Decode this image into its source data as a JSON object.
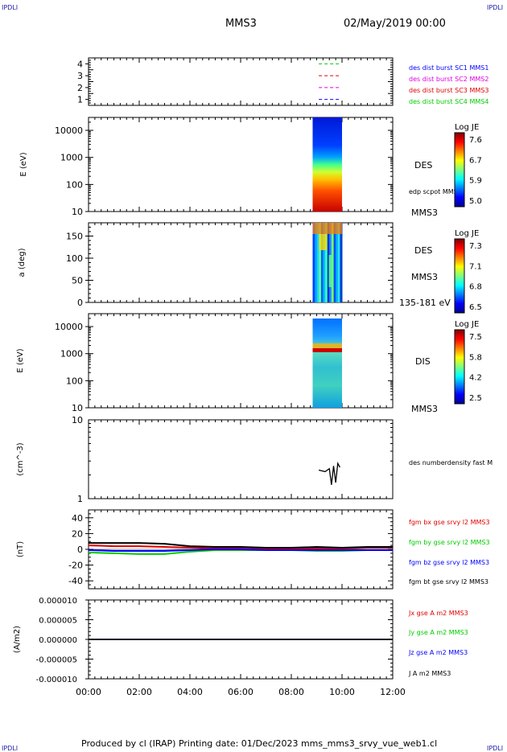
{
  "header": {
    "corner_left": "IPDLI",
    "corner_right": "IPDLI",
    "spacecraft": "MMS3",
    "date": "02/May/2019 00:00"
  },
  "footer": {
    "text": "Produced by cl (IRAP)   Printing date: 01/Dec/2023   mms_mms3_srvy_vue_web1.cl",
    "corner_left": "IPDLI",
    "corner_right": "IPDLI"
  },
  "colors": {
    "mms1": "#0000ff",
    "mms2": "#e000e0",
    "mms3": "#e00000",
    "mms4": "#00cc00",
    "bx": "#e00000",
    "by": "#00cc00",
    "bz": "#0000ff",
    "bt": "#000000"
  },
  "chart_data": [
    {
      "type": "scatter",
      "panel": "burst coverage",
      "xlabel": "",
      "ylabel": "",
      "xlim": [
        "00:00",
        "12:00"
      ],
      "ylim": [
        0.5,
        4.5
      ],
      "yticks": [
        "1",
        "2",
        "3",
        "4"
      ],
      "series": [
        {
          "name": "des dist burst SC1 MMS1",
          "y": 1,
          "x": [
            "09:05",
            "09:55"
          ],
          "color": "#0000ff"
        },
        {
          "name": "des dist burst SC2 MMS2",
          "y": 2,
          "x": [
            "09:05",
            "09:55"
          ],
          "color": "#e000e0"
        },
        {
          "name": "des dist burst SC3 MMS3",
          "y": 3,
          "x": [
            "09:05",
            "09:55"
          ],
          "color": "#e00000"
        },
        {
          "name": "des dist burst SC4 MMS4",
          "y": 4,
          "x": [
            "09:05",
            "09:55"
          ],
          "color": "#00cc00"
        }
      ]
    },
    {
      "type": "heatmap",
      "panel": "DES energy spectrogram",
      "ylabel": "E (eV)",
      "yscale": "log",
      "ylim": [
        10,
        30000
      ],
      "yticks": [
        "10",
        "100",
        "1000",
        "10000"
      ],
      "labels": [
        "DES",
        "edp scpot MMS3",
        "MMS3"
      ],
      "colorbar": {
        "title": "Log JE",
        "ticks": [
          "7.6",
          "6.7",
          "5.9",
          "5.0"
        ]
      },
      "data_interval": [
        "09:00",
        "10:00"
      ]
    },
    {
      "type": "heatmap",
      "panel": "DES pitch angle",
      "ylabel": "a (deg)",
      "ylim": [
        0,
        180
      ],
      "yticks": [
        "0",
        "50",
        "100",
        "150"
      ],
      "labels": [
        "DES",
        "MMS3",
        "135-181 eV"
      ],
      "colorbar": {
        "title": "Log JE",
        "ticks": [
          "7.3",
          "7.1",
          "6.8",
          "6.5"
        ]
      },
      "data_interval": [
        "09:00",
        "10:00"
      ]
    },
    {
      "type": "heatmap",
      "panel": "DIS energy spectrogram",
      "ylabel": "E (eV)",
      "yscale": "log",
      "ylim": [
        10,
        30000
      ],
      "yticks": [
        "10",
        "100",
        "1000",
        "10000"
      ],
      "labels": [
        "DIS",
        "MMS3"
      ],
      "colorbar": {
        "title": "Log JE",
        "ticks": [
          "7.5",
          "5.8",
          "4.2",
          "2.5"
        ]
      },
      "data_interval": [
        "09:00",
        "10:00"
      ]
    },
    {
      "type": "line",
      "panel": "density",
      "ylabel": "(cm^-3)",
      "yscale": "log",
      "ylim": [
        1,
        10
      ],
      "yticks": [
        "1",
        "10"
      ],
      "series": [
        {
          "name": "des numberdensity fast M",
          "color": "#000000",
          "x": [
            "09:05",
            "09:20",
            "09:30",
            "09:35",
            "09:40",
            "09:45",
            "09:50",
            "09:55"
          ],
          "y": [
            2.3,
            2.2,
            2.4,
            1.5,
            2.6,
            1.6,
            2.8,
            2.5
          ]
        }
      ]
    },
    {
      "type": "line",
      "panel": "magnetic field",
      "ylabel": "(nT)",
      "ylim": [
        -50,
        50
      ],
      "yticks": [
        "-40",
        "-20",
        "0",
        "20",
        "40"
      ],
      "series": [
        {
          "name": "fgm bx gse srvy l2 MMS3",
          "color": "#e00000",
          "x": [
            "00:00",
            "01:00",
            "02:00",
            "03:00",
            "04:00",
            "05:00",
            "06:00",
            "07:00",
            "08:00",
            "09:00",
            "10:00",
            "11:00",
            "12:00"
          ],
          "y": [
            5,
            4,
            4,
            3,
            2,
            1,
            2,
            1,
            1,
            1,
            1,
            2,
            2
          ]
        },
        {
          "name": "fgm by gse srvy l2 MMS3",
          "color": "#00cc00",
          "x": [
            "00:00",
            "01:00",
            "02:00",
            "03:00",
            "04:00",
            "05:00",
            "06:00",
            "07:00",
            "08:00",
            "09:00",
            "10:00",
            "11:00",
            "12:00"
          ],
          "y": [
            -4,
            -5,
            -6,
            -6,
            -3,
            -1,
            -1,
            -1,
            -1,
            -2,
            -2,
            -1,
            -1
          ]
        },
        {
          "name": "fgm bz gse srvy l2 MMS3",
          "color": "#0000ff",
          "x": [
            "00:00",
            "01:00",
            "02:00",
            "03:00",
            "04:00",
            "05:00",
            "06:00",
            "07:00",
            "08:00",
            "09:00",
            "10:00",
            "11:00",
            "12:00"
          ],
          "y": [
            -1,
            -2,
            -2,
            -2,
            -1,
            0,
            0,
            -1,
            -1,
            -1,
            -1,
            -1,
            -1
          ]
        },
        {
          "name": "fgm bt gse srvy l2 MMS3",
          "color": "#000000",
          "x": [
            "00:00",
            "01:00",
            "02:00",
            "03:00",
            "04:00",
            "05:00",
            "06:00",
            "07:00",
            "08:00",
            "09:00",
            "10:00",
            "11:00",
            "12:00"
          ],
          "y": [
            8,
            8,
            8,
            7,
            4,
            3,
            3,
            2,
            2,
            3,
            2,
            3,
            3
          ]
        }
      ]
    },
    {
      "type": "line",
      "panel": "current density",
      "ylabel": "(A/m2)",
      "ylim": [
        -1e-05,
        1e-05
      ],
      "yticks": [
        "-0.000010",
        "-0.000005",
        "0.000000",
        "0.000005",
        "0.000010"
      ],
      "series": [
        {
          "name": "Jx gse A m2 MMS3",
          "color": "#e00000",
          "x": [
            "00:00",
            "12:00"
          ],
          "y": [
            0,
            0
          ]
        },
        {
          "name": "Jy gse A m2 MMS3",
          "color": "#00cc00",
          "x": [
            "00:00",
            "12:00"
          ],
          "y": [
            0,
            0
          ]
        },
        {
          "name": "Jz gse A m2 MMS3",
          "color": "#0000ff",
          "x": [
            "00:00",
            "12:00"
          ],
          "y": [
            0,
            0
          ]
        },
        {
          "name": "J A m2 MMS3",
          "color": "#000000",
          "x": [
            "00:00",
            "12:00"
          ],
          "y": [
            0,
            0
          ]
        }
      ]
    }
  ],
  "time_axis": {
    "ticks": [
      "00:00",
      "02:00",
      "04:00",
      "06:00",
      "08:00",
      "10:00",
      "12:00"
    ]
  }
}
